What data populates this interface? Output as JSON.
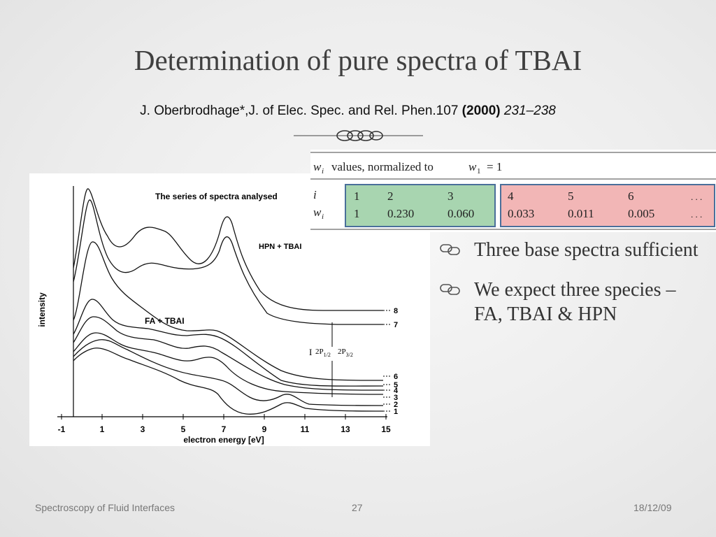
{
  "slide": {
    "title": "Determination of pure spectra of TBAI",
    "citation": {
      "authors": "J. Oberbrodhage*,J. of Elec. Spec. and Rel. Phen.107",
      "year": "(2000)",
      "pages": "231–238"
    }
  },
  "figure": {
    "plot_title": "The series of spectra analysed",
    "ylabel": "intensity",
    "xlabel": "electron energy [eV]",
    "xticks": [
      "-1",
      "1",
      "3",
      "5",
      "7",
      "9",
      "11",
      "13",
      "15"
    ],
    "label_hpn": "HPN + TBAI",
    "label_fa": "FA + TBAI",
    "annot_i": "I",
    "annot_p12": "2P",
    "annot_p12_sub": "1/2",
    "annot_p32": "2P",
    "annot_p32_sub": "3/2",
    "curve_labels": [
      "8",
      "7",
      "6",
      "5",
      "4",
      "3",
      "2",
      "1"
    ]
  },
  "weights_table": {
    "header": "values, normalized to",
    "header_w": "w",
    "header_i_sub": "i",
    "header_one_sub": "1",
    "header_eq": "= 1",
    "row_i_label": "i",
    "row_w_label": "w",
    "green_i": [
      "1",
      "2",
      "3"
    ],
    "green_w": [
      "1",
      "0.230",
      "0.060"
    ],
    "red_i": [
      "4",
      "5",
      "6",
      ". . ."
    ],
    "red_w": [
      "0.033",
      "0.011",
      "0.005",
      ". . ."
    ],
    "green_color": "#a8d5b0",
    "red_color": "#f2b6b6"
  },
  "bullets": [
    "Three base spectra sufficient",
    "We expect three species – FA, TBAI & HPN"
  ],
  "footer": {
    "left": "Spectroscopy of Fluid Interfaces",
    "center": "27",
    "right": "18/12/09"
  }
}
